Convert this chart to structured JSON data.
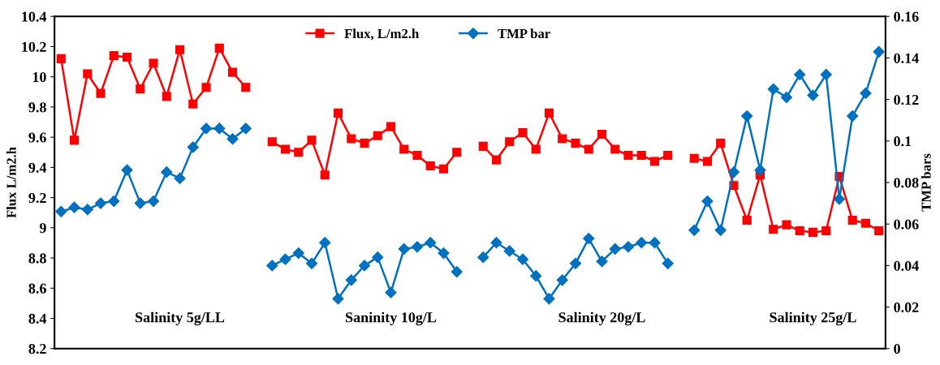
{
  "chart_data": {
    "type": "line",
    "ylabel": "Flux L/m2.h",
    "y2label": "TMP bars",
    "categories": [
      null,
      null,
      null,
      null,
      null,
      null,
      null,
      null,
      null,
      null,
      null,
      null,
      null,
      null,
      null,
      null,
      null,
      null,
      null,
      null,
      null,
      null,
      null,
      null,
      null,
      null,
      null,
      null,
      null,
      null,
      null,
      null,
      null,
      null,
      null,
      null,
      null,
      null,
      null,
      null,
      null,
      null,
      null,
      null,
      null,
      null,
      null,
      null,
      null,
      null,
      null,
      null,
      null,
      null,
      null,
      null,
      null,
      null,
      null,
      null,
      null,
      null,
      null
    ],
    "series": [
      {
        "name": "Flux, L/m2.h",
        "color": "#ff0000",
        "marker": "square",
        "values": [
          10.12,
          9.58,
          10.02,
          9.89,
          10.14,
          10.13,
          9.92,
          10.09,
          9.87,
          10.18,
          9.82,
          9.93,
          10.19,
          10.03,
          9.93,
          null,
          9.57,
          9.52,
          9.5,
          9.58,
          9.35,
          9.76,
          9.59,
          9.56,
          9.61,
          9.67,
          9.52,
          9.48,
          9.41,
          9.39,
          9.5,
          null,
          9.54,
          9.45,
          9.57,
          9.63,
          9.52,
          9.76,
          9.59,
          9.56,
          9.52,
          9.62,
          9.52,
          9.48,
          9.48,
          9.44,
          9.48,
          null,
          9.46,
          9.44,
          9.56,
          9.28,
          9.05,
          9.35,
          8.99,
          9.02,
          8.98,
          8.97,
          8.98,
          9.34,
          9.05,
          9.03,
          8.98
        ]
      },
      {
        "name": "TMP bar",
        "color": "#0070c0",
        "marker": "diamond",
        "axis": "y2",
        "values": [
          0.066,
          0.068,
          0.067,
          0.07,
          0.071,
          0.086,
          0.07,
          0.071,
          0.085,
          0.082,
          0.097,
          0.106,
          0.106,
          0.101,
          0.106,
          null,
          0.04,
          0.043,
          0.046,
          0.041,
          0.051,
          0.024,
          0.033,
          0.04,
          0.044,
          0.027,
          0.048,
          0.049,
          0.051,
          0.046,
          0.037,
          null,
          0.044,
          0.051,
          0.047,
          0.043,
          0.035,
          0.024,
          0.033,
          0.041,
          0.053,
          0.042,
          0.048,
          0.049,
          0.051,
          0.051,
          0.041,
          null,
          0.057,
          0.071,
          0.057,
          0.085,
          0.112,
          0.086,
          0.125,
          0.121,
          0.132,
          0.122,
          0.132,
          0.072,
          0.112,
          0.123,
          0.143
        ]
      }
    ],
    "ylim": [
      8.2,
      10.4
    ],
    "yticks": [
      8.2,
      8.4,
      8.6,
      8.8,
      9,
      9.2,
      9.4,
      9.6,
      9.8,
      10,
      10.2,
      10.4
    ],
    "y2lim": [
      0,
      0.16
    ],
    "y2ticks": [
      0,
      0.02,
      0.04,
      0.06,
      0.08,
      0.1,
      0.12,
      0.14,
      0.16
    ],
    "annotations": [
      "Salinity 5g/LL",
      "Saninity 10g/L",
      "Salinity 20g/L",
      "Salinity 25g/L"
    ],
    "legend": "top",
    "grid": false,
    "line_style": "solid"
  }
}
